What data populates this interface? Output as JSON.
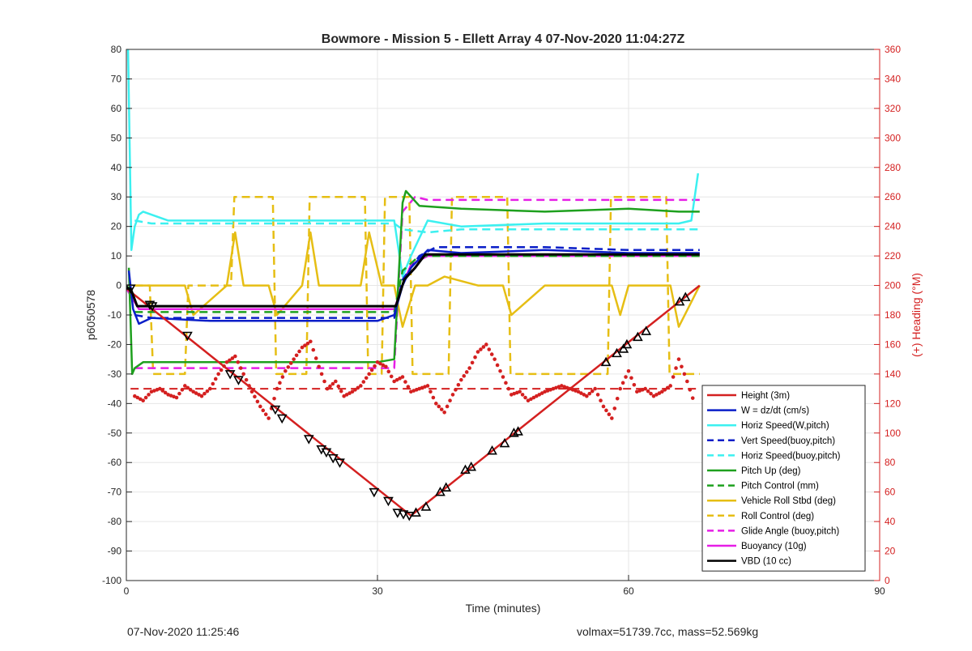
{
  "chart_data": {
    "type": "line",
    "title": "Bowmore - Mission 5 - Ellett Array 4 07-Nov-2020 11:04:27Z",
    "xlabel": "Time (minutes)",
    "ylabel": "p6050578",
    "ylabel_right": "(+) Heading (°M)",
    "xlim": [
      0,
      90
    ],
    "ylim": [
      -100,
      80
    ],
    "ylim_right": [
      0,
      360
    ],
    "x_ticks": [
      0,
      30,
      60,
      90
    ],
    "y_ticks": [
      -100,
      -90,
      -80,
      -70,
      -60,
      -50,
      -40,
      -30,
      -20,
      -10,
      0,
      10,
      20,
      30,
      40,
      50,
      60,
      70,
      80
    ],
    "y_right_ticks": [
      0,
      20,
      40,
      60,
      80,
      100,
      120,
      140,
      160,
      180,
      200,
      220,
      240,
      260,
      280,
      300,
      320,
      340,
      360
    ],
    "grid": true,
    "legend_position": "bottom-right",
    "series": [
      {
        "name": "Height (3m)",
        "color": "#d42020",
        "style": "solid",
        "x": [
          0,
          34,
          68.5
        ],
        "y": [
          -1,
          -78,
          0
        ]
      },
      {
        "name": "W = dz/dt (cm/s)",
        "color": "#0a1ec8",
        "style": "solid",
        "x": [
          0.3,
          0.8,
          1.5,
          3,
          10,
          20,
          30,
          32,
          33,
          34,
          36,
          40,
          50,
          60,
          66,
          68.5
        ],
        "y": [
          5,
          -8,
          -13,
          -11,
          -12,
          -12,
          -12,
          -10,
          0,
          6,
          12,
          11,
          12,
          11,
          11,
          11
        ]
      },
      {
        "name": "Horiz Speed(W,pitch)",
        "color": "#3cf0f0",
        "style": "solid",
        "x": [
          0.2,
          0.6,
          1,
          1.5,
          2,
          5,
          10,
          20,
          30,
          32,
          33,
          34,
          36,
          40,
          50,
          60,
          66,
          67.5,
          68.3
        ],
        "y": [
          80,
          12,
          20,
          24,
          25,
          22,
          22,
          22,
          22,
          22,
          3,
          10,
          22,
          20,
          21,
          21,
          21,
          22,
          38
        ]
      },
      {
        "name": "Vert Speed(buoy,pitch)",
        "color": "#0a1ec8",
        "style": "dashed",
        "x": [
          1,
          3,
          10,
          20,
          30,
          32,
          33,
          35,
          37,
          40,
          50,
          60,
          66,
          68.5
        ],
        "y": [
          -10,
          -11,
          -11,
          -11,
          -11,
          -11,
          2,
          10,
          13,
          13,
          13,
          12,
          12,
          12
        ]
      },
      {
        "name": "Horiz Speed(buoy,pitch)",
        "color": "#3cf0f0",
        "style": "dashed",
        "x": [
          1,
          3,
          10,
          20,
          30,
          32,
          33,
          36,
          40,
          50,
          60,
          66,
          68.5
        ],
        "y": [
          22,
          21,
          21,
          21,
          21,
          21,
          19,
          18,
          19,
          19,
          19,
          19,
          19
        ]
      },
      {
        "name": "Pitch Up (deg)",
        "color": "#1ea01e",
        "style": "solid",
        "x": [
          0.3,
          0.7,
          1,
          2,
          5,
          10,
          20,
          30,
          32,
          33,
          33.4,
          35,
          40,
          50,
          60,
          66,
          68.5
        ],
        "y": [
          6,
          -30,
          -28,
          -26,
          -26,
          -26,
          -26,
          -26,
          -25,
          28,
          32,
          27,
          26,
          25,
          26,
          25,
          25
        ]
      },
      {
        "name": "Pitch Control (mm)",
        "color": "#1ea01e",
        "style": "dashed",
        "x": [
          1,
          3,
          10,
          20,
          30,
          32,
          33,
          35,
          40,
          50,
          60,
          66,
          68.5
        ],
        "y": [
          -9,
          -9,
          -9,
          -9,
          -9,
          -9,
          5,
          10,
          10,
          10,
          10,
          10,
          10
        ]
      },
      {
        "name": "Vehicle Roll Stbd (deg)",
        "color": "#e6be14",
        "style": "solid",
        "x": [
          1,
          3,
          7,
          8,
          12,
          13,
          14,
          17,
          18,
          21,
          22,
          23,
          28,
          29,
          30.5,
          32,
          33,
          34.5,
          36,
          38,
          42,
          45,
          46,
          50,
          58,
          59,
          60,
          65,
          66,
          68.5
        ],
        "y": [
          0,
          0,
          0,
          -10,
          0,
          18,
          0,
          0,
          -10,
          0,
          18,
          0,
          0,
          18,
          0,
          0,
          -14,
          0,
          0,
          3,
          0,
          0,
          -10,
          0,
          0,
          -10,
          0,
          0,
          -14,
          0
        ]
      },
      {
        "name": "Roll Control (deg)",
        "color": "#e6be14",
        "style": "dashed",
        "x": [
          1,
          2.8,
          3.2,
          7,
          7.4,
          12.5,
          12.9,
          17.5,
          17.9,
          21.5,
          21.9,
          28.5,
          28.9,
          30.5,
          30.9,
          33.8,
          34.2,
          38.5,
          38.9,
          45.5,
          45.9,
          57.5,
          57.9,
          64.5,
          64.9,
          68.5
        ],
        "y": [
          0,
          0,
          -30,
          -30,
          0,
          0,
          30,
          30,
          -30,
          -30,
          30,
          30,
          -30,
          -30,
          30,
          30,
          -30,
          -30,
          30,
          30,
          -30,
          -30,
          30,
          30,
          -30,
          -30
        ]
      },
      {
        "name": "Glide Angle (buoy,pitch)",
        "color": "#e61ee6",
        "style": "dashed",
        "x": [
          1,
          3,
          10,
          20,
          30,
          32,
          33,
          34.5,
          36,
          40,
          50,
          60,
          66,
          68.5
        ],
        "y": [
          -28,
          -28,
          -28,
          -28,
          -28,
          -28,
          25,
          30,
          29,
          29,
          29,
          29,
          29,
          29
        ]
      },
      {
        "name": "Buoyancy (10g)",
        "color": "#e61ee6",
        "style": "solid",
        "x": [
          0,
          1.5,
          2.5,
          10,
          20,
          30,
          32,
          33,
          34,
          36,
          40,
          50,
          60,
          66,
          68.5
        ],
        "y": [
          -1,
          -8,
          -8,
          -8,
          -8,
          -8,
          -8,
          0,
          7,
          10,
          10,
          10,
          10,
          10,
          10
        ]
      },
      {
        "name": "VBD (10 cc)",
        "color": "#000000",
        "style": "solid",
        "x": [
          0,
          0.5,
          1.3,
          2.5,
          10,
          20,
          30,
          32.2,
          33.2,
          34.5,
          35.7,
          40,
          50,
          60,
          66,
          68.5
        ],
        "y": [
          -1,
          -1,
          -7,
          -7,
          -7,
          -7,
          -7,
          -7,
          2,
          6,
          10.5,
          10.5,
          10.5,
          10.5,
          10.5,
          10.5
        ]
      }
    ],
    "heading_reference": {
      "y_right": 130,
      "color": "#d42020",
      "style": "dashed"
    },
    "heading_samples": {
      "color": "#d42020",
      "x": [
        1,
        2,
        3,
        4,
        5,
        6,
        7,
        8,
        9,
        10,
        11,
        12,
        13,
        14,
        15,
        16,
        17,
        18,
        19,
        20,
        21,
        22,
        23,
        24,
        25,
        26,
        27,
        28,
        29,
        30,
        31,
        32,
        33,
        34,
        35,
        36,
        37,
        38,
        39,
        40,
        41,
        42,
        43,
        44,
        45,
        46,
        47,
        48,
        49,
        50,
        51,
        52,
        53,
        54,
        55,
        56,
        57,
        58,
        59,
        60,
        61,
        62,
        63,
        64,
        65,
        66,
        67,
        68
      ],
      "y_right": [
        125,
        122,
        128,
        130,
        126,
        124,
        132,
        128,
        125,
        130,
        140,
        148,
        152,
        140,
        128,
        118,
        110,
        130,
        142,
        150,
        158,
        162,
        145,
        130,
        135,
        125,
        128,
        132,
        140,
        148,
        145,
        135,
        138,
        128,
        130,
        132,
        120,
        114,
        126,
        136,
        144,
        155,
        160,
        150,
        138,
        126,
        128,
        122,
        125,
        128,
        130,
        132,
        130,
        128,
        125,
        130,
        118,
        110,
        130,
        142,
        128,
        130,
        125,
        128,
        132,
        150,
        135,
        118
      ]
    },
    "markers": {
      "color": "#000000",
      "x": [
        0.5,
        2.8,
        3.1,
        7.3,
        12.4,
        13.4,
        17.8,
        18.6,
        21.8,
        23.3,
        23.9,
        24.7,
        25.5,
        29.6,
        31.3,
        32.4,
        33.1,
        33.8,
        34.6,
        35.8,
        37.5,
        38.2,
        40.5,
        41.2,
        43.7,
        45.2,
        46.3,
        46.8,
        57.3,
        58.6,
        59.4,
        59.8,
        61.1,
        62.1,
        66.1,
        66.8
      ],
      "y": [
        -1,
        -6.5,
        -7,
        -17,
        -30,
        -32,
        -42,
        -45,
        -52,
        -55.5,
        -56.5,
        -58.5,
        -60,
        -70,
        -73,
        -77,
        -77.5,
        -78,
        -77,
        -75,
        -70,
        -68.5,
        -62.5,
        -61.5,
        -56,
        -53.5,
        -50,
        -49.5,
        -26,
        -23,
        -21.5,
        -20,
        -17.5,
        -15.5,
        -5.5,
        -4
      ]
    },
    "annotations": {
      "footer_left": "07-Nov-2020 11:25:46",
      "footer_right": "volmax=51739.7cc, mass=52.569kg"
    }
  }
}
